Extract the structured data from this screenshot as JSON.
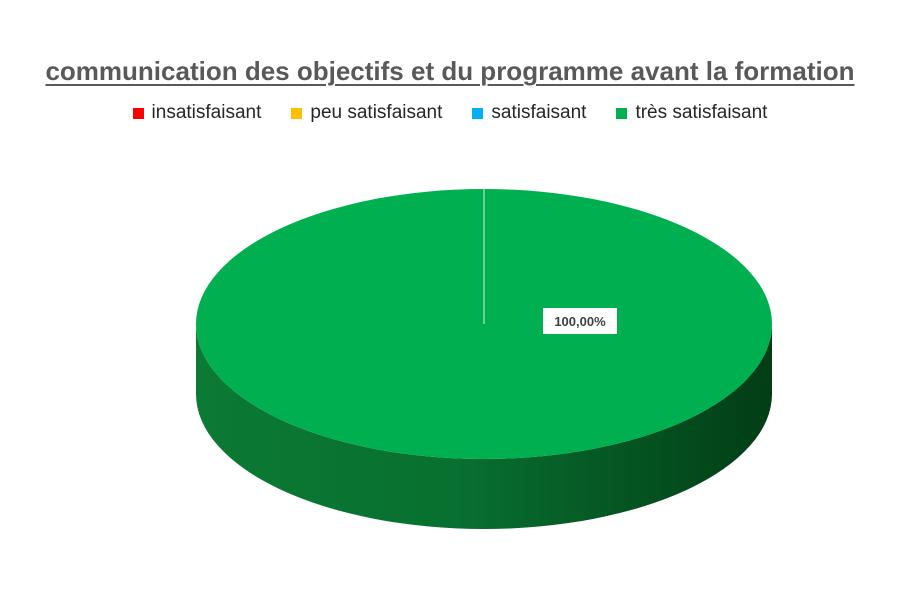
{
  "chart_data": {
    "type": "pie",
    "title": "communication des objectifs et du programme avant la formation",
    "categories": [
      "insatisfaisant",
      "peu satisfaisant",
      "satisfaisant",
      "très satisfaisant"
    ],
    "values": [
      0,
      0,
      0,
      1
    ],
    "data_labels": [
      "",
      "",
      "",
      "100,00%"
    ],
    "colors": [
      "#ff0000",
      "#ffc000",
      "#00b0f0",
      "#00b050"
    ],
    "legend_position": "top",
    "style": "3d"
  }
}
